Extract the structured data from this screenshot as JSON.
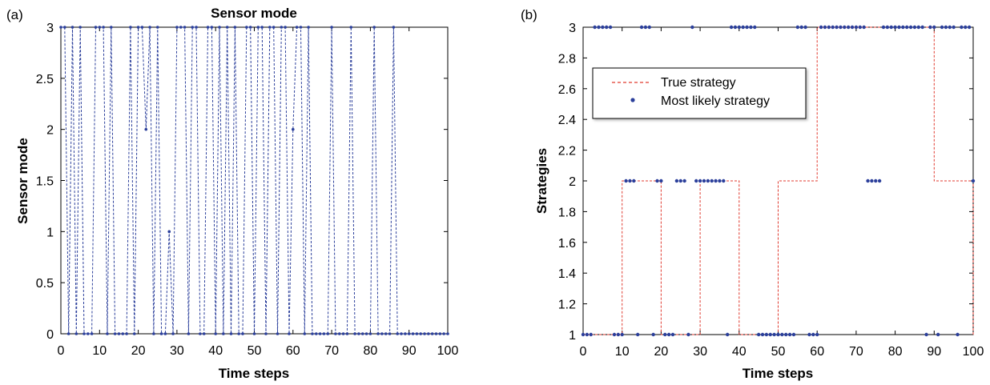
{
  "chart_data": [
    {
      "panel_label": "(a)",
      "type": "line",
      "title": "Sensor mode",
      "xlabel": "Time steps",
      "ylabel": "Sensor mode",
      "xlim": [
        0,
        100
      ],
      "ylim": [
        0,
        3
      ],
      "xticks": [
        "0",
        "10",
        "20",
        "30",
        "40",
        "50",
        "60",
        "70",
        "80",
        "90",
        "100"
      ],
      "yticks": [
        "0",
        "0.5",
        "1",
        "1.5",
        "2",
        "2.5",
        "3"
      ],
      "grid": false,
      "line_style": "dashed",
      "marker": "dot",
      "color": "#2b3f9b",
      "series": [
        {
          "x": [
            0,
            1,
            2,
            3,
            4,
            5,
            6,
            7,
            8,
            9,
            10,
            11,
            12,
            13,
            14,
            15,
            16,
            17,
            18,
            19,
            20,
            21,
            22,
            23,
            24,
            25,
            26,
            27,
            28,
            29,
            30,
            31,
            32,
            33,
            34,
            35,
            36,
            37,
            38,
            39,
            40,
            41,
            42,
            43,
            44,
            45,
            46,
            47,
            48,
            49,
            50,
            51,
            52,
            53,
            54,
            55,
            56,
            57,
            58,
            59,
            60,
            61,
            62,
            63,
            64,
            65,
            66,
            67,
            68,
            69,
            70,
            71,
            72,
            73,
            74,
            75,
            76,
            77,
            78,
            79,
            80,
            81,
            82,
            83,
            84,
            85,
            86,
            87,
            88,
            89,
            90,
            91,
            92,
            93,
            94,
            95,
            96,
            97,
            98,
            99,
            100
          ],
          "values": [
            3,
            3,
            0,
            3,
            0,
            3,
            0,
            0,
            0,
            3,
            3,
            3,
            0,
            3,
            0,
            0,
            0,
            0,
            3,
            0,
            3,
            3,
            2,
            3,
            0,
            3,
            0,
            0,
            1,
            0,
            3,
            3,
            3,
            0,
            3,
            3,
            0,
            0,
            3,
            3,
            0,
            3,
            0,
            3,
            0,
            3,
            0,
            0,
            3,
            3,
            0,
            3,
            3,
            0,
            3,
            3,
            0,
            3,
            3,
            0,
            2,
            3,
            3,
            0,
            3,
            0,
            0,
            0,
            0,
            0,
            3,
            0,
            0,
            0,
            0,
            3,
            0,
            0,
            0,
            0,
            0,
            3,
            0,
            0,
            0,
            0,
            3,
            0,
            0,
            0,
            0,
            0,
            0,
            0,
            0,
            0,
            0,
            0,
            0,
            0,
            0
          ]
        }
      ]
    },
    {
      "panel_label": "(b)",
      "type": "line",
      "title": "",
      "xlabel": "Time steps",
      "ylabel": "Strategies",
      "xlim": [
        0,
        100
      ],
      "ylim": [
        1,
        3
      ],
      "xticks": [
        "0",
        "10",
        "20",
        "30",
        "40",
        "50",
        "60",
        "70",
        "80",
        "90",
        "100"
      ],
      "yticks": [
        "1",
        "1.2",
        "1.4",
        "1.6",
        "1.8",
        "2",
        "2.2",
        "2.4",
        "2.6",
        "2.8",
        "3"
      ],
      "grid": false,
      "legend_position": "upper-left",
      "series": [
        {
          "name": "True strategy",
          "style": "dashed",
          "color": "#e03a2f",
          "x": [
            0,
            10,
            10,
            20,
            20,
            30,
            30,
            40,
            40,
            50,
            50,
            60,
            60,
            90,
            90,
            100,
            100
          ],
          "values": [
            1,
            1,
            2,
            2,
            1,
            1,
            2,
            2,
            1,
            1,
            2,
            2,
            3,
            3,
            2,
            2,
            1
          ]
        },
        {
          "name": "Most likely strategy",
          "style": "dots",
          "color": "#2b3f9b",
          "x": [
            0,
            1,
            2,
            3,
            4,
            5,
            6,
            7,
            8,
            9,
            10,
            11,
            12,
            13,
            14,
            15,
            16,
            17,
            18,
            19,
            20,
            21,
            22,
            23,
            24,
            25,
            26,
            27,
            28,
            29,
            30,
            31,
            32,
            33,
            34,
            35,
            36,
            37,
            38,
            39,
            40,
            41,
            42,
            43,
            44,
            45,
            46,
            47,
            48,
            49,
            50,
            51,
            52,
            53,
            54,
            55,
            56,
            57,
            58,
            59,
            60,
            61,
            62,
            63,
            64,
            65,
            66,
            67,
            68,
            69,
            70,
            71,
            72,
            73,
            74,
            75,
            76,
            77,
            78,
            79,
            80,
            81,
            82,
            83,
            84,
            85,
            86,
            87,
            88,
            89,
            90,
            91,
            92,
            93,
            94,
            95,
            96,
            97,
            98,
            99,
            100
          ],
          "values": [
            1,
            1,
            1,
            3,
            3,
            3,
            3,
            3,
            1,
            1,
            1,
            2,
            2,
            2,
            1,
            3,
            3,
            3,
            1,
            2,
            2,
            1,
            1,
            1,
            2,
            2,
            2,
            1,
            3,
            2,
            2,
            2,
            2,
            2,
            2,
            2,
            2,
            1,
            3,
            3,
            3,
            3,
            3,
            3,
            3,
            1,
            1,
            1,
            1,
            1,
            1,
            1,
            1,
            1,
            1,
            3,
            3,
            3,
            1,
            1,
            1,
            3,
            3,
            3,
            3,
            3,
            3,
            3,
            3,
            3,
            3,
            3,
            3,
            2,
            2,
            2,
            2,
            3,
            3,
            3,
            3,
            3,
            3,
            3,
            3,
            3,
            3,
            3,
            1,
            3,
            3,
            1,
            3,
            3,
            3,
            3,
            1,
            3,
            3,
            3,
            2
          ]
        }
      ]
    }
  ]
}
